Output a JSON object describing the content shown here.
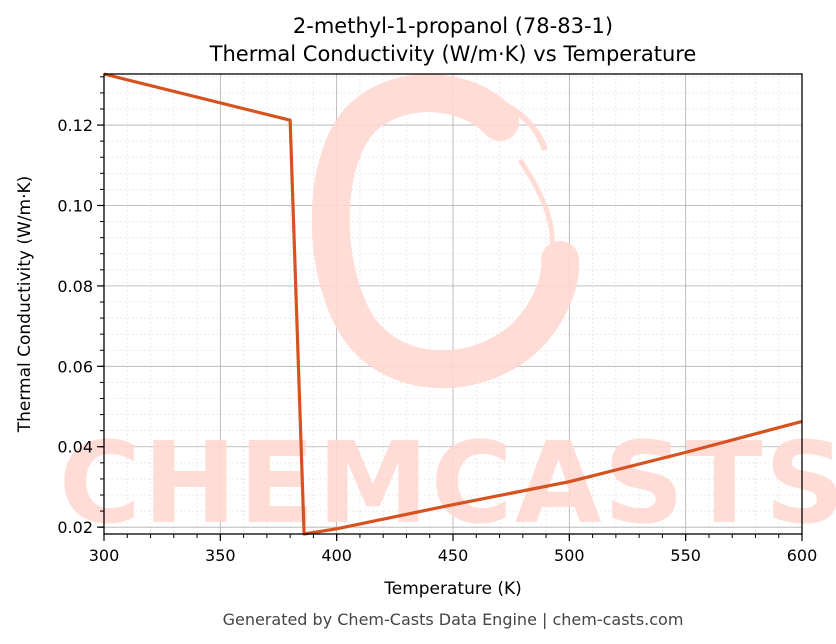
{
  "chart_data": {
    "type": "line",
    "title": "2-methyl-1-propanol (78-83-1)",
    "subtitle": "Thermal Conductivity (W/m·K) vs Temperature",
    "xlabel": "Temperature (K)",
    "ylabel": "Thermal Conductivity (W/m·K)",
    "xlim": [
      300,
      600
    ],
    "ylim": [
      0.0183,
      0.1327
    ],
    "x_ticks": [
      300,
      350,
      400,
      450,
      500,
      550,
      600
    ],
    "y_ticks": [
      0.02,
      0.04,
      0.06,
      0.08,
      0.1,
      0.12
    ],
    "x_tick_labels": [
      "300",
      "350",
      "400",
      "450",
      "500",
      "550",
      "600"
    ],
    "y_tick_labels": [
      "0.02",
      "0.04",
      "0.06",
      "0.08",
      "0.10",
      "0.12"
    ],
    "grid": true,
    "minor_grid": true,
    "line_color": "#d6521f",
    "series": [
      {
        "x": [
          300,
          380,
          386,
          400,
          450,
          500,
          550,
          600
        ],
        "values": [
          0.1327,
          0.1212,
          0.0183,
          0.0196,
          0.0256,
          0.0313,
          0.0386,
          0.0463
        ]
      }
    ]
  },
  "watermark": {
    "text": "CHEMCASTS",
    "color": "#ffd9d2"
  },
  "footer": "Generated by Chem-Casts Data Engine | chem-casts.com"
}
